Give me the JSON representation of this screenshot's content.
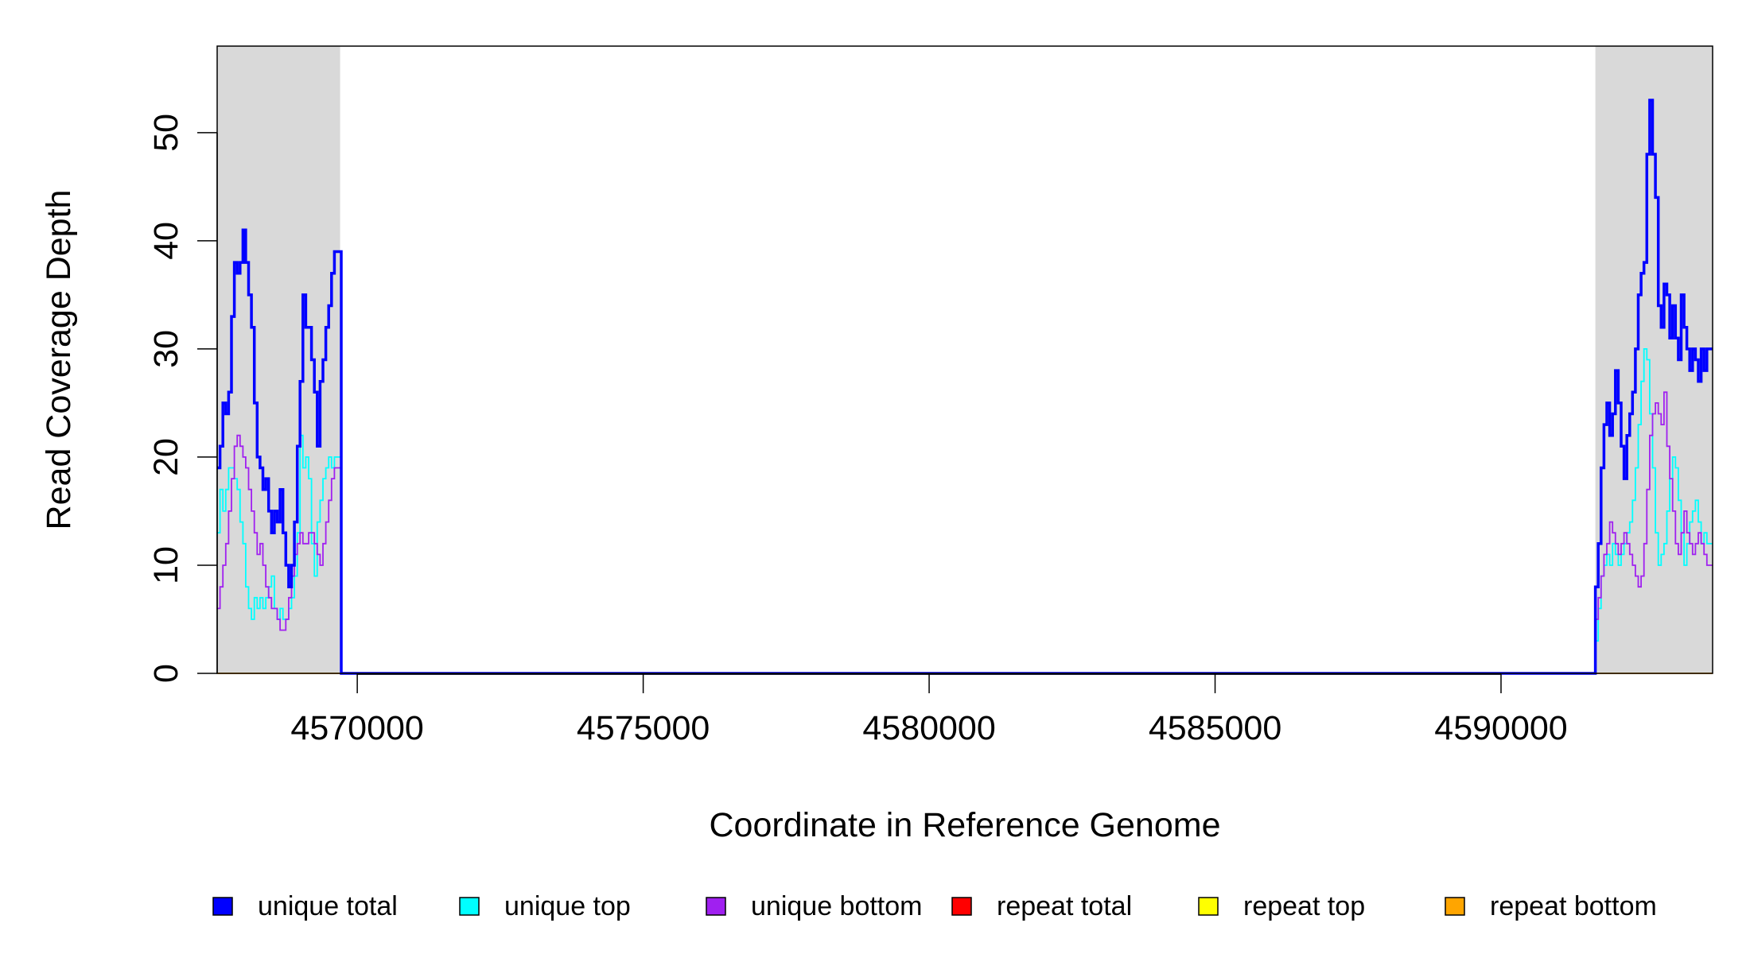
{
  "chart_data": {
    "type": "line",
    "title": "",
    "xlabel": "Coordinate in Reference Genome",
    "ylabel": "Read Coverage Depth",
    "xlim": [
      4567550,
      4593700
    ],
    "ylim": [
      0,
      58
    ],
    "x_ticks": [
      4570000,
      4575000,
      4580000,
      4585000,
      4590000
    ],
    "x_tick_labels": [
      "4570000",
      "4575000",
      "4580000",
      "4585000",
      "4590000"
    ],
    "y_ticks": [
      0,
      10,
      20,
      30,
      40,
      50
    ],
    "y_tick_labels": [
      "0",
      "10",
      "20",
      "30",
      "40",
      "50"
    ],
    "grid": false,
    "legend_position": "bottom",
    "shaded_regions": [
      {
        "x_start": 4567550,
        "x_end": 4569700,
        "color": "#d9d9d9"
      },
      {
        "x_start": 4591650,
        "x_end": 4593700,
        "color": "#d9d9d9"
      }
    ],
    "series": [
      {
        "name": "unique total",
        "color": "#0000ff",
        "points": [
          [
            4567550,
            19
          ],
          [
            4567600,
            21
          ],
          [
            4567650,
            25
          ],
          [
            4567700,
            24
          ],
          [
            4567750,
            26
          ],
          [
            4567800,
            33
          ],
          [
            4567850,
            38
          ],
          [
            4567900,
            37
          ],
          [
            4567950,
            38
          ],
          [
            4568000,
            41
          ],
          [
            4568050,
            38
          ],
          [
            4568100,
            35
          ],
          [
            4568150,
            32
          ],
          [
            4568200,
            25
          ],
          [
            4568250,
            20
          ],
          [
            4568300,
            19
          ],
          [
            4568350,
            17
          ],
          [
            4568400,
            18
          ],
          [
            4568450,
            15
          ],
          [
            4568500,
            13
          ],
          [
            4568550,
            15
          ],
          [
            4568600,
            14
          ],
          [
            4568650,
            17
          ],
          [
            4568700,
            13
          ],
          [
            4568750,
            10
          ],
          [
            4568800,
            8
          ],
          [
            4568850,
            10
          ],
          [
            4568900,
            14
          ],
          [
            4568950,
            21
          ],
          [
            4569000,
            27
          ],
          [
            4569050,
            35
          ],
          [
            4569100,
            32
          ],
          [
            4569150,
            32
          ],
          [
            4569200,
            29
          ],
          [
            4569250,
            26
          ],
          [
            4569300,
            21
          ],
          [
            4569350,
            27
          ],
          [
            4569400,
            29
          ],
          [
            4569450,
            32
          ],
          [
            4569500,
            34
          ],
          [
            4569550,
            37
          ],
          [
            4569600,
            39
          ],
          [
            4569700,
            39
          ],
          [
            4569720,
            0
          ],
          [
            4591620,
            0
          ],
          [
            4591650,
            8
          ],
          [
            4591700,
            12
          ],
          [
            4591750,
            19
          ],
          [
            4591800,
            23
          ],
          [
            4591850,
            25
          ],
          [
            4591900,
            22
          ],
          [
            4591950,
            24
          ],
          [
            4592000,
            28
          ],
          [
            4592050,
            25
          ],
          [
            4592100,
            21
          ],
          [
            4592150,
            18
          ],
          [
            4592200,
            22
          ],
          [
            4592250,
            24
          ],
          [
            4592300,
            26
          ],
          [
            4592350,
            30
          ],
          [
            4592400,
            35
          ],
          [
            4592450,
            37
          ],
          [
            4592500,
            38
          ],
          [
            4592550,
            48
          ],
          [
            4592600,
            53
          ],
          [
            4592650,
            48
          ],
          [
            4592700,
            44
          ],
          [
            4592750,
            34
          ],
          [
            4592800,
            32
          ],
          [
            4592850,
            36
          ],
          [
            4592900,
            35
          ],
          [
            4592950,
            31
          ],
          [
            4593000,
            34
          ],
          [
            4593050,
            31
          ],
          [
            4593100,
            29
          ],
          [
            4593150,
            35
          ],
          [
            4593200,
            32
          ],
          [
            4593250,
            30
          ],
          [
            4593300,
            28
          ],
          [
            4593350,
            30
          ],
          [
            4593400,
            29
          ],
          [
            4593450,
            27
          ],
          [
            4593500,
            30
          ],
          [
            4593550,
            28
          ],
          [
            4593600,
            30
          ],
          [
            4593700,
            30
          ]
        ]
      },
      {
        "name": "unique top",
        "color": "#00ffff",
        "points": [
          [
            4567550,
            13
          ],
          [
            4567600,
            17
          ],
          [
            4567650,
            15
          ],
          [
            4567700,
            17
          ],
          [
            4567750,
            19
          ],
          [
            4567800,
            19
          ],
          [
            4567850,
            18
          ],
          [
            4567900,
            17
          ],
          [
            4567950,
            14
          ],
          [
            4568000,
            12
          ],
          [
            4568050,
            8
          ],
          [
            4568100,
            6
          ],
          [
            4568150,
            5
          ],
          [
            4568200,
            7
          ],
          [
            4568250,
            6
          ],
          [
            4568300,
            7
          ],
          [
            4568350,
            6
          ],
          [
            4568400,
            7
          ],
          [
            4568450,
            8
          ],
          [
            4568500,
            9
          ],
          [
            4568550,
            6
          ],
          [
            4568600,
            5
          ],
          [
            4568650,
            6
          ],
          [
            4568700,
            5
          ],
          [
            4568750,
            5
          ],
          [
            4568800,
            6
          ],
          [
            4568850,
            7
          ],
          [
            4568900,
            9
          ],
          [
            4568950,
            13
          ],
          [
            4569000,
            22
          ],
          [
            4569050,
            19
          ],
          [
            4569100,
            20
          ],
          [
            4569150,
            18
          ],
          [
            4569200,
            12
          ],
          [
            4569250,
            9
          ],
          [
            4569300,
            14
          ],
          [
            4569350,
            16
          ],
          [
            4569400,
            18
          ],
          [
            4569450,
            19
          ],
          [
            4569500,
            20
          ],
          [
            4569550,
            19
          ],
          [
            4569600,
            20
          ],
          [
            4569700,
            20
          ],
          [
            4569720,
            0
          ],
          [
            4591620,
            0
          ],
          [
            4591650,
            3
          ],
          [
            4591700,
            6
          ],
          [
            4591750,
            9
          ],
          [
            4591800,
            10
          ],
          [
            4591850,
            11
          ],
          [
            4591900,
            10
          ],
          [
            4591950,
            12
          ],
          [
            4592000,
            11
          ],
          [
            4592050,
            10
          ],
          [
            4592100,
            11
          ],
          [
            4592150,
            12
          ],
          [
            4592200,
            13
          ],
          [
            4592250,
            14
          ],
          [
            4592300,
            16
          ],
          [
            4592350,
            19
          ],
          [
            4592400,
            23
          ],
          [
            4592450,
            27
          ],
          [
            4592500,
            30
          ],
          [
            4592550,
            29
          ],
          [
            4592600,
            24
          ],
          [
            4592650,
            19
          ],
          [
            4592700,
            13
          ],
          [
            4592750,
            10
          ],
          [
            4592800,
            11
          ],
          [
            4592850,
            12
          ],
          [
            4592900,
            15
          ],
          [
            4592950,
            18
          ],
          [
            4593000,
            20
          ],
          [
            4593050,
            19
          ],
          [
            4593100,
            16
          ],
          [
            4593150,
            13
          ],
          [
            4593200,
            10
          ],
          [
            4593250,
            12
          ],
          [
            4593300,
            14
          ],
          [
            4593350,
            15
          ],
          [
            4593400,
            16
          ],
          [
            4593450,
            14
          ],
          [
            4593500,
            12
          ],
          [
            4593550,
            13
          ],
          [
            4593600,
            12
          ],
          [
            4593700,
            12
          ]
        ]
      },
      {
        "name": "unique bottom",
        "color": "#a020f0",
        "points": [
          [
            4567550,
            6
          ],
          [
            4567600,
            8
          ],
          [
            4567650,
            10
          ],
          [
            4567700,
            12
          ],
          [
            4567750,
            15
          ],
          [
            4567800,
            18
          ],
          [
            4567850,
            21
          ],
          [
            4567900,
            22
          ],
          [
            4567950,
            21
          ],
          [
            4568000,
            20
          ],
          [
            4568050,
            19
          ],
          [
            4568100,
            17
          ],
          [
            4568150,
            15
          ],
          [
            4568200,
            13
          ],
          [
            4568250,
            11
          ],
          [
            4568300,
            12
          ],
          [
            4568350,
            10
          ],
          [
            4568400,
            8
          ],
          [
            4568450,
            7
          ],
          [
            4568500,
            6
          ],
          [
            4568550,
            6
          ],
          [
            4568600,
            5
          ],
          [
            4568650,
            4
          ],
          [
            4568700,
            4
          ],
          [
            4568750,
            5
          ],
          [
            4568800,
            7
          ],
          [
            4568850,
            9
          ],
          [
            4568900,
            11
          ],
          [
            4568950,
            12
          ],
          [
            4569000,
            13
          ],
          [
            4569050,
            12
          ],
          [
            4569100,
            12
          ],
          [
            4569150,
            13
          ],
          [
            4569200,
            13
          ],
          [
            4569250,
            12
          ],
          [
            4569300,
            11
          ],
          [
            4569350,
            10
          ],
          [
            4569400,
            12
          ],
          [
            4569450,
            14
          ],
          [
            4569500,
            16
          ],
          [
            4569550,
            18
          ],
          [
            4569600,
            19
          ],
          [
            4569700,
            19
          ],
          [
            4569720,
            0
          ],
          [
            4591620,
            0
          ],
          [
            4591650,
            5
          ],
          [
            4591700,
            7
          ],
          [
            4591750,
            9
          ],
          [
            4591800,
            11
          ],
          [
            4591850,
            12
          ],
          [
            4591900,
            14
          ],
          [
            4591950,
            13
          ],
          [
            4592000,
            12
          ],
          [
            4592050,
            11
          ],
          [
            4592100,
            12
          ],
          [
            4592150,
            13
          ],
          [
            4592200,
            12
          ],
          [
            4592250,
            11
          ],
          [
            4592300,
            10
          ],
          [
            4592350,
            9
          ],
          [
            4592400,
            8
          ],
          [
            4592450,
            9
          ],
          [
            4592500,
            12
          ],
          [
            4592550,
            17
          ],
          [
            4592600,
            22
          ],
          [
            4592650,
            24
          ],
          [
            4592700,
            25
          ],
          [
            4592750,
            24
          ],
          [
            4592800,
            23
          ],
          [
            4592850,
            26
          ],
          [
            4592900,
            21
          ],
          [
            4592950,
            18
          ],
          [
            4593000,
            15
          ],
          [
            4593050,
            12
          ],
          [
            4593100,
            11
          ],
          [
            4593150,
            13
          ],
          [
            4593200,
            15
          ],
          [
            4593250,
            13
          ],
          [
            4593300,
            12
          ],
          [
            4593350,
            11
          ],
          [
            4593400,
            12
          ],
          [
            4593450,
            13
          ],
          [
            4593500,
            12
          ],
          [
            4593550,
            11
          ],
          [
            4593600,
            10
          ],
          [
            4593700,
            10
          ]
        ]
      },
      {
        "name": "repeat total",
        "color": "#ff0000",
        "points": [
          [
            4567550,
            0
          ],
          [
            4593700,
            0
          ]
        ]
      },
      {
        "name": "repeat top",
        "color": "#ffff00",
        "points": [
          [
            4567550,
            0
          ],
          [
            4593700,
            0
          ]
        ]
      },
      {
        "name": "repeat bottom",
        "color": "#ffa500",
        "points": [
          [
            4567550,
            0
          ],
          [
            4593700,
            0
          ]
        ]
      }
    ]
  }
}
